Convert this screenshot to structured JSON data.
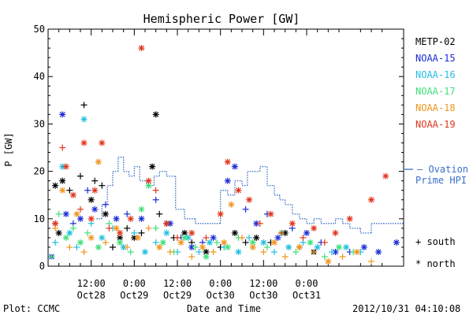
{
  "chart_data": {
    "type": "scatter",
    "title": "Hemispheric Power [GW]",
    "ylabel": "P [GW]",
    "xlabel": "Date and Time",
    "ylim": [
      0,
      50
    ],
    "yticks": [
      "0",
      "10",
      "20",
      "30",
      "40",
      "50"
    ],
    "xlim_hours": [
      0,
      99
    ],
    "xticks": [
      {
        "hour": 12,
        "time": "12:00",
        "date": "Oct28"
      },
      {
        "hour": 24,
        "time": "0:00",
        "date": "Oct29"
      },
      {
        "hour": 36,
        "time": "12:00",
        "date": "Oct29"
      },
      {
        "hour": 48,
        "time": "0:00",
        "date": "Oct30"
      },
      {
        "hour": 60,
        "time": "12:00",
        "date": "Oct30"
      },
      {
        "hour": 72,
        "time": "0:00",
        "date": "Oct31"
      }
    ],
    "time_origin": "2012-10-27 15:00",
    "grid": false,
    "legend_position": "right",
    "footer_left": "Plot: CCMC",
    "footer_right": "2012/10/31 04:10:08",
    "legend": [
      {
        "name": "METP-02",
        "color": "#000000"
      },
      {
        "name": "NOAA-15",
        "color": "#1a2bd6"
      },
      {
        "name": "NOAA-16",
        "color": "#22bfe0"
      },
      {
        "name": "NOAA-17",
        "color": "#3ee07a"
      },
      {
        "name": "NOAA-18",
        "color": "#f0951e"
      },
      {
        "name": "NOAA-19",
        "color": "#e0361b"
      }
    ],
    "ovation_label": [
      "Ovation",
      "Prime HPI"
    ],
    "ovation_color": "#3a6fc9",
    "marker_legend": [
      {
        "symbol": "+",
        "label": "south"
      },
      {
        "symbol": "*",
        "label": "north"
      }
    ],
    "ovation_steps": [
      [
        13.5,
        10
      ],
      [
        15,
        13
      ],
      [
        16.5,
        17
      ],
      [
        18,
        20
      ],
      [
        19.5,
        23
      ],
      [
        21,
        20
      ],
      [
        22.5,
        19
      ],
      [
        24,
        21
      ],
      [
        25.5,
        18
      ],
      [
        27.5,
        17
      ],
      [
        29.5,
        19
      ],
      [
        31,
        20
      ],
      [
        33,
        19
      ],
      [
        35.5,
        12
      ],
      [
        38,
        10
      ],
      [
        41,
        9
      ],
      [
        48,
        16
      ],
      [
        50,
        15
      ],
      [
        52,
        18
      ],
      [
        54,
        17
      ],
      [
        55.5,
        20
      ],
      [
        57.5,
        20
      ],
      [
        59,
        21
      ],
      [
        61,
        17
      ],
      [
        63,
        15
      ],
      [
        64.5,
        14
      ],
      [
        66,
        13
      ],
      [
        68,
        11
      ],
      [
        70,
        10
      ],
      [
        72,
        9
      ],
      [
        74,
        10
      ],
      [
        76,
        9
      ],
      [
        78,
        9
      ],
      [
        80,
        10
      ],
      [
        82,
        9
      ],
      [
        84,
        8
      ],
      [
        87,
        7
      ],
      [
        90,
        9
      ],
      [
        99,
        9
      ]
    ],
    "series": [
      {
        "name": "METP-02",
        "points": [
          [
            2,
            17,
            "*"
          ],
          [
            3,
            7,
            "*"
          ],
          [
            4,
            18,
            "*"
          ],
          [
            6,
            16,
            "+"
          ],
          [
            9,
            19,
            "+"
          ],
          [
            10,
            34,
            "+"
          ],
          [
            12,
            14,
            "*"
          ],
          [
            13,
            18,
            "+"
          ],
          [
            15,
            17,
            "+"
          ],
          [
            16,
            11,
            "*"
          ],
          [
            18,
            4,
            "+"
          ],
          [
            20,
            6,
            "*"
          ],
          [
            22,
            8,
            "+"
          ],
          [
            24,
            6,
            "*"
          ],
          [
            26,
            7,
            "+"
          ],
          [
            29,
            21,
            "*"
          ],
          [
            30,
            32,
            "*"
          ],
          [
            31,
            11,
            "+"
          ],
          [
            33,
            9,
            "*"
          ],
          [
            35,
            6,
            "+"
          ],
          [
            38,
            7,
            "*"
          ],
          [
            40,
            5,
            "+"
          ],
          [
            44,
            3,
            "*"
          ],
          [
            48,
            4,
            "+"
          ],
          [
            52,
            7,
            "*"
          ],
          [
            55,
            5,
            "+"
          ],
          [
            58,
            6,
            "*"
          ],
          [
            62,
            5,
            "+"
          ],
          [
            66,
            7,
            "*"
          ],
          [
            70,
            4,
            "+"
          ],
          [
            74,
            3,
            "*"
          ]
        ]
      },
      {
        "name": "NOAA-15",
        "points": [
          [
            1,
            2,
            "*"
          ],
          [
            2,
            9,
            "+"
          ],
          [
            4,
            32,
            "*"
          ],
          [
            5,
            11,
            "*"
          ],
          [
            7,
            9,
            "+"
          ],
          [
            9,
            10,
            "*"
          ],
          [
            11,
            16,
            "+"
          ],
          [
            13,
            12,
            "*"
          ],
          [
            16,
            13,
            "+"
          ],
          [
            19,
            10,
            "*"
          ],
          [
            22,
            11,
            "+"
          ],
          [
            26,
            10,
            "*"
          ],
          [
            30,
            14,
            "+"
          ],
          [
            34,
            9,
            "*"
          ],
          [
            37,
            6,
            "+"
          ],
          [
            40,
            4,
            "*"
          ],
          [
            43,
            5,
            "+"
          ],
          [
            46,
            6,
            "*"
          ],
          [
            50,
            18,
            "*"
          ],
          [
            52,
            21,
            "*"
          ],
          [
            55,
            12,
            "+"
          ],
          [
            58,
            9,
            "*"
          ],
          [
            61,
            11,
            "+"
          ],
          [
            64,
            6,
            "*"
          ],
          [
            68,
            8,
            "+"
          ],
          [
            72,
            7,
            "*"
          ],
          [
            76,
            5,
            "+"
          ],
          [
            80,
            3,
            "*"
          ],
          [
            84,
            3,
            "+"
          ],
          [
            88,
            4,
            "*"
          ],
          [
            92,
            3,
            "*"
          ],
          [
            97,
            5,
            "*"
          ]
        ]
      },
      {
        "name": "NOAA-16",
        "points": [
          [
            2,
            5,
            "+"
          ],
          [
            4,
            21,
            "*"
          ],
          [
            6,
            7,
            "*"
          ],
          [
            8,
            4,
            "+"
          ],
          [
            10,
            31,
            "*"
          ],
          [
            12,
            9,
            "+"
          ],
          [
            15,
            6,
            "*"
          ],
          [
            18,
            8,
            "+"
          ],
          [
            21,
            4,
            "*"
          ],
          [
            24,
            7,
            "+"
          ],
          [
            27,
            3,
            "*"
          ],
          [
            30,
            5,
            "+"
          ],
          [
            33,
            7,
            "*"
          ],
          [
            36,
            3,
            "+"
          ],
          [
            39,
            6,
            "*"
          ],
          [
            42,
            3,
            "+"
          ],
          [
            45,
            5,
            "*"
          ],
          [
            49,
            4,
            "+"
          ],
          [
            53,
            3,
            "*"
          ],
          [
            56,
            6,
            "+"
          ],
          [
            60,
            5,
            "*"
          ],
          [
            63,
            3,
            "+"
          ],
          [
            67,
            4,
            "*"
          ],
          [
            71,
            5,
            "+"
          ],
          [
            75,
            4,
            "*"
          ],
          [
            79,
            3,
            "+"
          ],
          [
            83,
            4,
            "*"
          ],
          [
            87,
            3,
            "+"
          ]
        ]
      },
      {
        "name": "NOAA-17",
        "points": [
          [
            1,
            2,
            "+"
          ],
          [
            3,
            11,
            "+"
          ],
          [
            5,
            6,
            "*"
          ],
          [
            7,
            8,
            "+"
          ],
          [
            9,
            5,
            "*"
          ],
          [
            11,
            7,
            "+"
          ],
          [
            14,
            4,
            "*"
          ],
          [
            17,
            9,
            "+"
          ],
          [
            20,
            5,
            "*"
          ],
          [
            23,
            3,
            "+"
          ],
          [
            26,
            12,
            "*"
          ],
          [
            28,
            17,
            "*"
          ],
          [
            30,
            8,
            "+"
          ],
          [
            32,
            5,
            "*"
          ],
          [
            35,
            3,
            "+"
          ],
          [
            38,
            6,
            "*"
          ],
          [
            41,
            4,
            "+"
          ],
          [
            44,
            2,
            "*"
          ],
          [
            47,
            5,
            "+"
          ],
          [
            50,
            4,
            "*"
          ],
          [
            53,
            6,
            "+"
          ],
          [
            57,
            5,
            "*"
          ],
          [
            61,
            4,
            "+"
          ],
          [
            65,
            7,
            "*"
          ],
          [
            69,
            3,
            "+"
          ],
          [
            73,
            5,
            "*"
          ],
          [
            77,
            2,
            "+"
          ],
          [
            81,
            4,
            "*"
          ],
          [
            85,
            3,
            "+"
          ]
        ]
      },
      {
        "name": "NOAA-18",
        "points": [
          [
            2,
            8,
            "+"
          ],
          [
            4,
            16,
            "*"
          ],
          [
            6,
            4,
            "+"
          ],
          [
            8,
            11,
            "*"
          ],
          [
            10,
            3,
            "+"
          ],
          [
            12,
            6,
            "*"
          ],
          [
            14,
            22,
            "*"
          ],
          [
            16,
            5,
            "+"
          ],
          [
            19,
            8,
            "*"
          ],
          [
            22,
            4,
            "+"
          ],
          [
            25,
            6,
            "*"
          ],
          [
            28,
            8,
            "+"
          ],
          [
            31,
            4,
            "*"
          ],
          [
            34,
            3,
            "+"
          ],
          [
            37,
            5,
            "*"
          ],
          [
            40,
            2,
            "+"
          ],
          [
            43,
            4,
            "*"
          ],
          [
            46,
            3,
            "+"
          ],
          [
            49,
            5,
            "*"
          ],
          [
            51,
            13,
            "*"
          ],
          [
            54,
            6,
            "+"
          ],
          [
            57,
            4,
            "*"
          ],
          [
            60,
            3,
            "+"
          ],
          [
            63,
            5,
            "*"
          ],
          [
            66,
            2,
            "+"
          ],
          [
            70,
            4,
            "*"
          ],
          [
            74,
            3,
            "+"
          ],
          [
            78,
            1,
            "*"
          ],
          [
            82,
            2,
            "+"
          ],
          [
            86,
            3,
            "*"
          ],
          [
            90,
            1,
            "+"
          ]
        ]
      },
      {
        "name": "NOAA-19",
        "points": [
          [
            2,
            9,
            "*"
          ],
          [
            4,
            25,
            "+"
          ],
          [
            5,
            21,
            "*"
          ],
          [
            7,
            15,
            "*"
          ],
          [
            9,
            12,
            "+"
          ],
          [
            10,
            26,
            "*"
          ],
          [
            12,
            10,
            "*"
          ],
          [
            13,
            16,
            "*"
          ],
          [
            15,
            26,
            "*"
          ],
          [
            17,
            8,
            "+"
          ],
          [
            20,
            7,
            "*"
          ],
          [
            23,
            10,
            "*"
          ],
          [
            26,
            46,
            "*"
          ],
          [
            28,
            18,
            "*"
          ],
          [
            30,
            16,
            "+"
          ],
          [
            33,
            9,
            "*"
          ],
          [
            36,
            6,
            "+"
          ],
          [
            40,
            7,
            "*"
          ],
          [
            44,
            6,
            "+"
          ],
          [
            48,
            11,
            "*"
          ],
          [
            50,
            22,
            "*"
          ],
          [
            53,
            16,
            "*"
          ],
          [
            56,
            14,
            "*"
          ],
          [
            59,
            9,
            "+"
          ],
          [
            62,
            11,
            "*"
          ],
          [
            65,
            7,
            "+"
          ],
          [
            68,
            9,
            "*"
          ],
          [
            71,
            6,
            "+"
          ],
          [
            74,
            8,
            "*"
          ],
          [
            77,
            5,
            "+"
          ],
          [
            80,
            7,
            "*"
          ],
          [
            84,
            10,
            "*"
          ],
          [
            90,
            14,
            "*"
          ],
          [
            94,
            19,
            "*"
          ]
        ]
      }
    ]
  }
}
